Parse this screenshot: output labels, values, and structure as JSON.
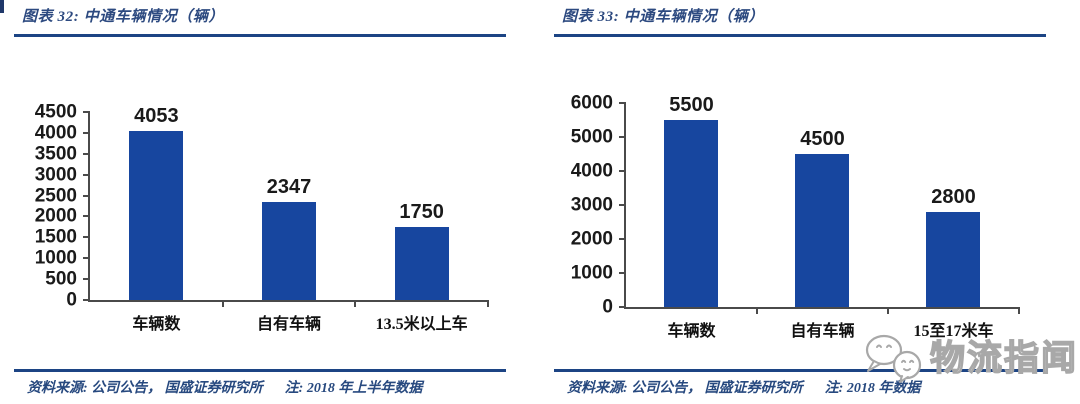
{
  "page": {
    "background": "#ffffff",
    "rule_color": "#1c4484",
    "heading_text_color": "#2d4a80",
    "axis_color": "#4a4a4a",
    "label_text_color": "#1a1a1a",
    "bar_color": "#17469f"
  },
  "watermark": {
    "name": "物流指闻",
    "icon": "chat-bubbles-icon",
    "outline_color": "#a8a8a8"
  },
  "chart_data": [
    {
      "type": "bar",
      "title": "图表 32:  中通车辆情况（辆）",
      "categories": [
        "车辆数",
        "自有车辆",
        "13.5米以上车"
      ],
      "values": [
        4053,
        2347,
        1750
      ],
      "ylim": [
        0,
        4500
      ],
      "ytick_step": 500,
      "xlabel": "",
      "ylabel": "",
      "grid": false,
      "legend": false,
      "data_labels": true,
      "bar_color": "#17469f",
      "source": "资料来源: 公司公告， 国盛证券研究所",
      "note": "注: 2018 年上半年数据"
    },
    {
      "type": "bar",
      "title": "图表 33:  中通车辆情况（辆）",
      "categories": [
        "车辆数",
        "自有车辆",
        "15至17米车"
      ],
      "values": [
        5500,
        4500,
        2800
      ],
      "ylim": [
        0,
        6000
      ],
      "ytick_step": 1000,
      "xlabel": "",
      "ylabel": "",
      "grid": false,
      "legend": false,
      "data_labels": true,
      "bar_color": "#17469f",
      "source": "资料来源: 公司公告， 国盛证券研究所",
      "note": "注: 2018 年数据"
    }
  ]
}
